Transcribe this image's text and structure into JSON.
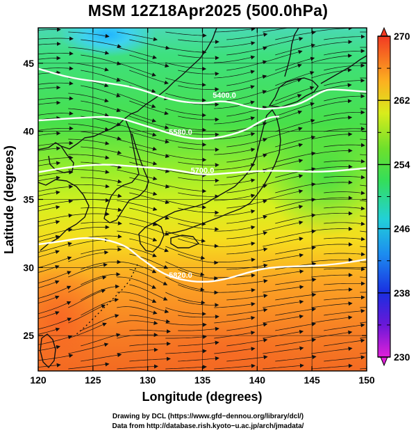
{
  "title": "MSM 12Z18Apr2025 (500.0hPa)",
  "axes": {
    "xlabel": "Longitude (degrees)",
    "ylabel": "Latitude  (degrees)",
    "xlim": [
      120,
      150
    ],
    "ylim": [
      22.4,
      47.6
    ],
    "xticks": [
      120,
      125,
      130,
      135,
      140,
      145,
      150
    ],
    "yticks": [
      25,
      30,
      35,
      40,
      45
    ]
  },
  "colorbar": {
    "min": 230,
    "max": 270,
    "tick_labels": [
      {
        "value": 230,
        "label": "230"
      },
      {
        "value": 238,
        "label": "238"
      },
      {
        "value": 246,
        "label": "246"
      },
      {
        "value": 254,
        "label": "254"
      },
      {
        "value": 262,
        "label": "262"
      },
      {
        "value": 270,
        "label": "270"
      }
    ],
    "minor_ticks": [
      234,
      242,
      250,
      258,
      266
    ]
  },
  "contours": [
    {
      "name": "5400",
      "label": "5400.0",
      "points": [
        [
          120,
          44.6
        ],
        [
          123,
          43.9
        ],
        [
          126,
          43.6
        ],
        [
          129,
          43.2
        ],
        [
          132,
          42.3
        ],
        [
          135,
          42.0
        ],
        [
          137,
          42.3
        ],
        [
          140,
          41.6
        ],
        [
          142,
          41.7
        ],
        [
          144,
          42.0
        ],
        [
          146,
          43.0
        ],
        [
          147,
          43.1
        ],
        [
          150,
          42.9
        ]
      ]
    },
    {
      "name": "5580",
      "label": "5580.0",
      "points": [
        [
          120,
          40.8
        ],
        [
          122,
          40.9
        ],
        [
          124,
          41.0
        ],
        [
          127,
          41.1
        ],
        [
          129,
          40.6
        ],
        [
          131,
          40.1
        ],
        [
          133,
          39.6
        ],
        [
          135,
          39.4
        ],
        [
          137,
          39.6
        ],
        [
          139,
          40.1
        ],
        [
          140,
          40.6
        ],
        [
          141,
          41.0
        ],
        [
          142,
          41.1
        ]
      ]
    },
    {
      "name": "5700",
      "label": "5700.0",
      "points": [
        [
          120,
          37.0
        ],
        [
          123,
          37.4
        ],
        [
          126,
          37.6
        ],
        [
          129,
          37.4
        ],
        [
          131,
          37.3
        ],
        [
          133,
          37.1
        ],
        [
          135,
          36.8
        ],
        [
          137,
          36.9
        ],
        [
          140,
          37.1
        ],
        [
          143,
          37.1
        ],
        [
          146,
          37.0
        ],
        [
          150,
          37.3
        ]
      ]
    },
    {
      "name": "5820",
      "label": "5820.0",
      "points": [
        [
          120,
          31.7
        ],
        [
          122,
          31.9
        ],
        [
          124,
          32.2
        ],
        [
          126,
          32.1
        ],
        [
          128,
          31.6
        ],
        [
          129,
          30.9
        ],
        [
          130,
          30.3
        ],
        [
          131.5,
          29.5
        ],
        [
          133,
          29.1
        ],
        [
          135,
          28.9
        ],
        [
          137,
          29.1
        ],
        [
          139,
          29.6
        ],
        [
          141,
          30.0
        ],
        [
          144,
          30.1
        ],
        [
          147,
          30.2
        ],
        [
          150,
          30.6
        ]
      ]
    }
  ],
  "credits": {
    "line1": "Drawing by DCL (https://www.gfd−dennou.org/library/dcl/)",
    "line2": "Data from http://database.rish.kyoto−u.ac.jp/arch/jmadata/"
  }
}
